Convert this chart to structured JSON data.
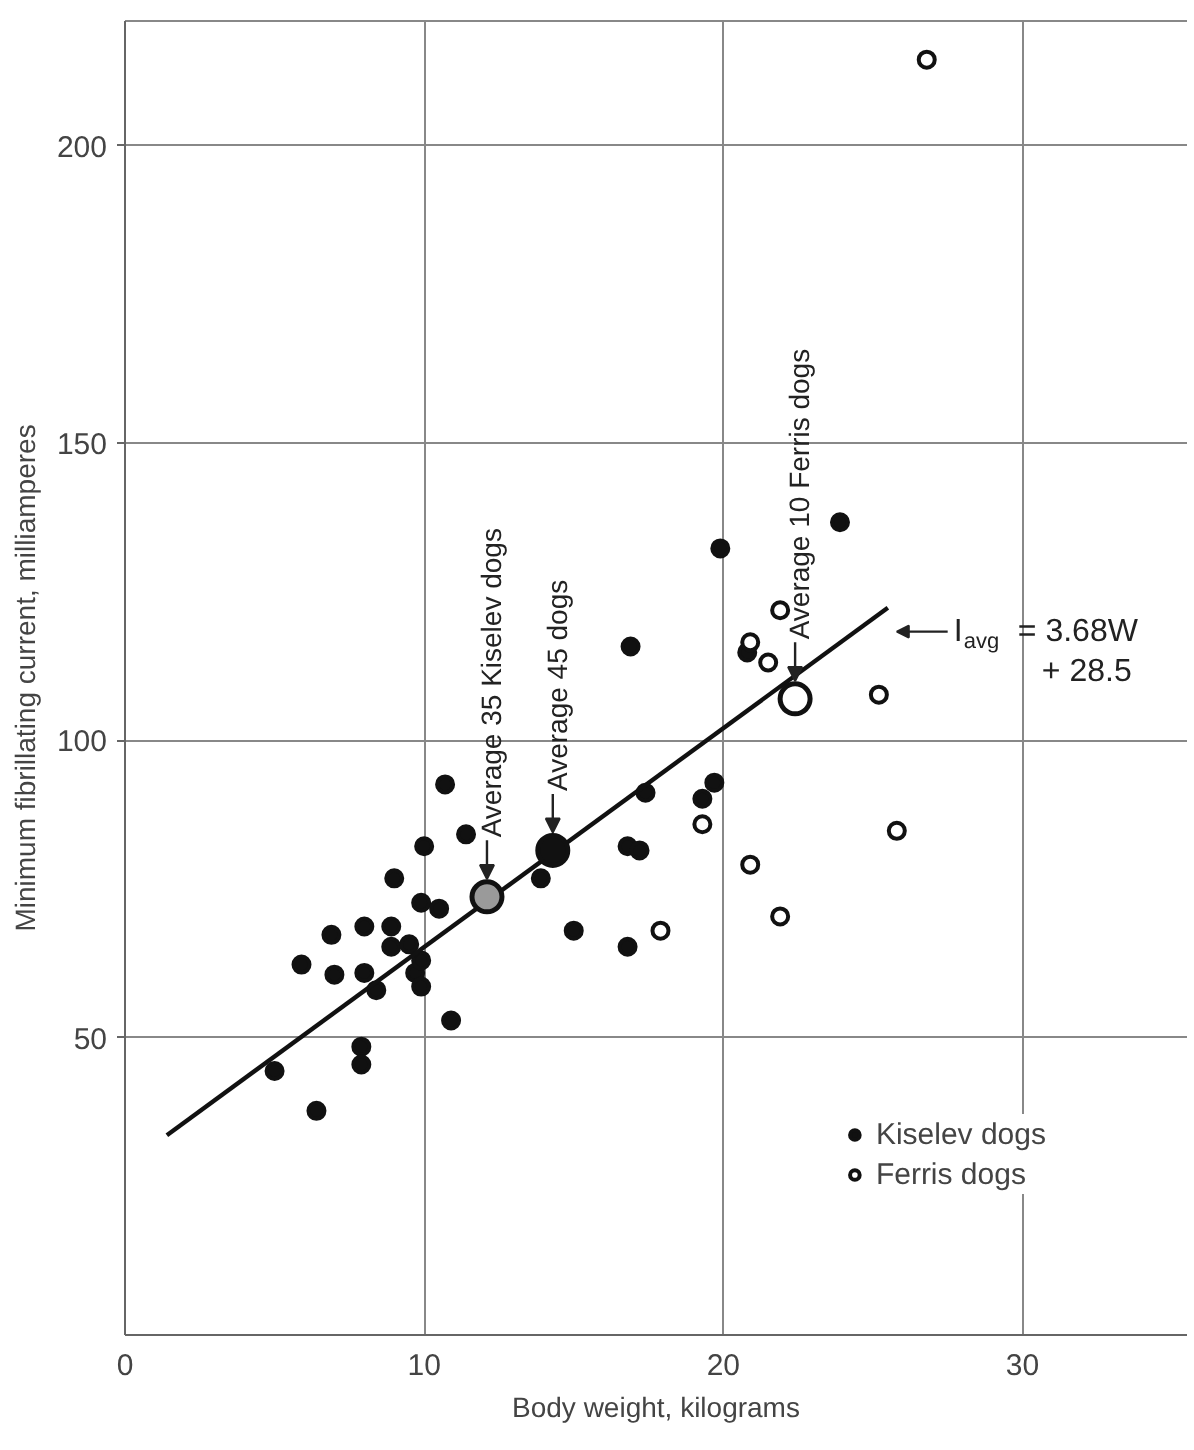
{
  "chart_data": {
    "type": "scatter",
    "xlabel": "Body weight, kilograms",
    "ylabel": "Minimum fibrillating current, milliamperes",
    "xlim": [
      0,
      35.5
    ],
    "ylim": [
      0,
      221
    ],
    "xticks": [
      0,
      10,
      20,
      30
    ],
    "yticks": [
      50,
      100,
      150,
      200
    ],
    "grid": true,
    "legend": "bottom right",
    "marker": "circle",
    "series": [
      {
        "name": "Kiselev dogs",
        "color": "#111111",
        "x": [
          5.0,
          6.4,
          5.9,
          6.9,
          7.0,
          8.0,
          8.0,
          8.4,
          7.9,
          7.9,
          9.0,
          8.9,
          8.9,
          9.5,
          9.7,
          9.9,
          9.9,
          10.0,
          9.9,
          10.5,
          10.7,
          10.9,
          11.4,
          13.9,
          15.0,
          17.4,
          16.8,
          17.2,
          16.8,
          19.3,
          19.7,
          23.9,
          19.9,
          16.9,
          20.8
        ],
        "values": [
          44.4,
          37.7,
          62.3,
          67.3,
          60.6,
          68.7,
          60.9,
          58.0,
          48.5,
          45.5,
          76.8,
          68.7,
          65.3,
          65.7,
          60.9,
          63.0,
          58.6,
          82.2,
          72.7,
          71.7,
          92.6,
          52.9,
          84.2,
          76.8,
          68.0,
          91.2,
          82.2,
          81.5,
          65.3,
          90.2,
          92.9,
          136.7,
          132.3,
          115.8,
          114.8
        ]
      },
      {
        "name": "Ferris dogs",
        "color": "#ffffff",
        "x": [
          17.9,
          19.3,
          20.9,
          21.9,
          25.8,
          25.2,
          26.8,
          21.9,
          20.9,
          21.5
        ],
        "values": [
          68.0,
          85.9,
          79.1,
          70.4,
          84.8,
          107.7,
          214.5,
          121.9,
          116.5,
          113.1
        ]
      },
      {
        "type": "line",
        "color": "#111111",
        "marker": "none",
        "x": [
          1.4,
          25.5
        ],
        "values": [
          33.6,
          122.3
        ]
      },
      {
        "color": "#9a9a9a",
        "x": [
          12.1
        ],
        "values": [
          73.7
        ]
      },
      {
        "color": "#111111",
        "x": [
          14.3
        ],
        "values": [
          81.5
        ]
      },
      {
        "color": "#ffffff",
        "x": [
          22.4
        ],
        "values": [
          107.0
        ]
      }
    ],
    "annotations": [
      {
        "text": "Average 35 Kiselev dogs",
        "x": 12.1,
        "y": 73.7
      },
      {
        "text": "Average 45 dogs",
        "x": 14.3,
        "y": 81.5
      },
      {
        "text": "Average 10 Ferris dogs",
        "x": 22.4,
        "y": 107.0
      },
      {
        "text": "I$_{avg}$ = 3.68W + 28.5",
        "x": 25.5,
        "y": 122.3
      }
    ]
  }
}
